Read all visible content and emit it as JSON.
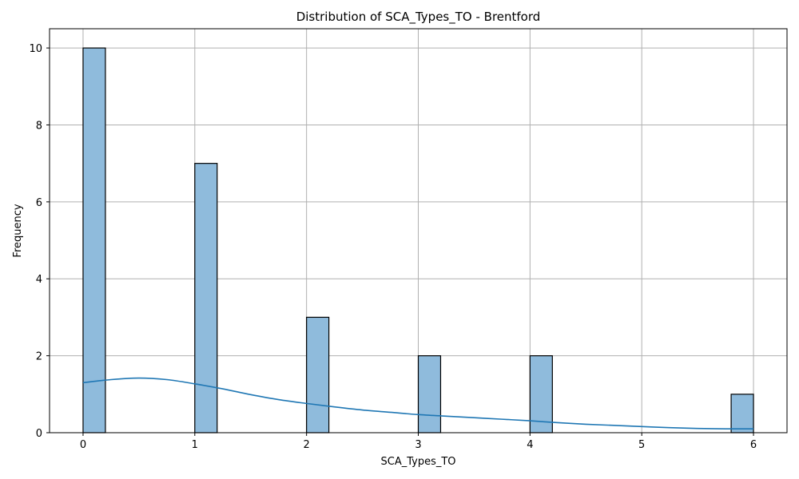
{
  "chart_data": {
    "type": "bar",
    "title": "Distribution of SCA_Types_TO - Brentford",
    "xlabel": "SCA_Types_TO",
    "ylabel": "Frequency",
    "xlim": [
      -0.3,
      6.3
    ],
    "ylim": [
      0,
      10.5
    ],
    "xticks": [
      0,
      1,
      2,
      3,
      4,
      5,
      6
    ],
    "yticks": [
      0,
      2,
      4,
      6,
      8,
      10
    ],
    "grid": true,
    "bin_width": 0.2,
    "bars": [
      {
        "x_start": 0.0,
        "x_end": 0.2,
        "count": 10
      },
      {
        "x_start": 1.0,
        "x_end": 1.2,
        "count": 7
      },
      {
        "x_start": 2.0,
        "x_end": 2.2,
        "count": 3
      },
      {
        "x_start": 3.0,
        "x_end": 3.2,
        "count": 2
      },
      {
        "x_start": 4.0,
        "x_end": 4.2,
        "count": 2
      },
      {
        "x_start": 5.8,
        "x_end": 6.0,
        "count": 1
      }
    ],
    "kde": {
      "x": [
        0.0,
        0.25,
        0.5,
        0.75,
        1.0,
        1.25,
        1.5,
        1.75,
        2.0,
        2.25,
        2.5,
        2.75,
        3.0,
        3.25,
        3.5,
        3.75,
        4.0,
        4.25,
        4.5,
        4.75,
        5.0,
        5.25,
        5.5,
        5.75,
        6.0
      ],
      "y": [
        1.3,
        1.38,
        1.42,
        1.38,
        1.27,
        1.14,
        0.99,
        0.86,
        0.76,
        0.67,
        0.59,
        0.53,
        0.47,
        0.43,
        0.39,
        0.35,
        0.31,
        0.26,
        0.22,
        0.19,
        0.16,
        0.13,
        0.11,
        0.1,
        0.1
      ]
    },
    "colors": {
      "bar_fill": "#8fbbdc",
      "bar_edge": "#000000",
      "kde_line": "#1f77b4",
      "grid": "#b0b0b0"
    }
  }
}
